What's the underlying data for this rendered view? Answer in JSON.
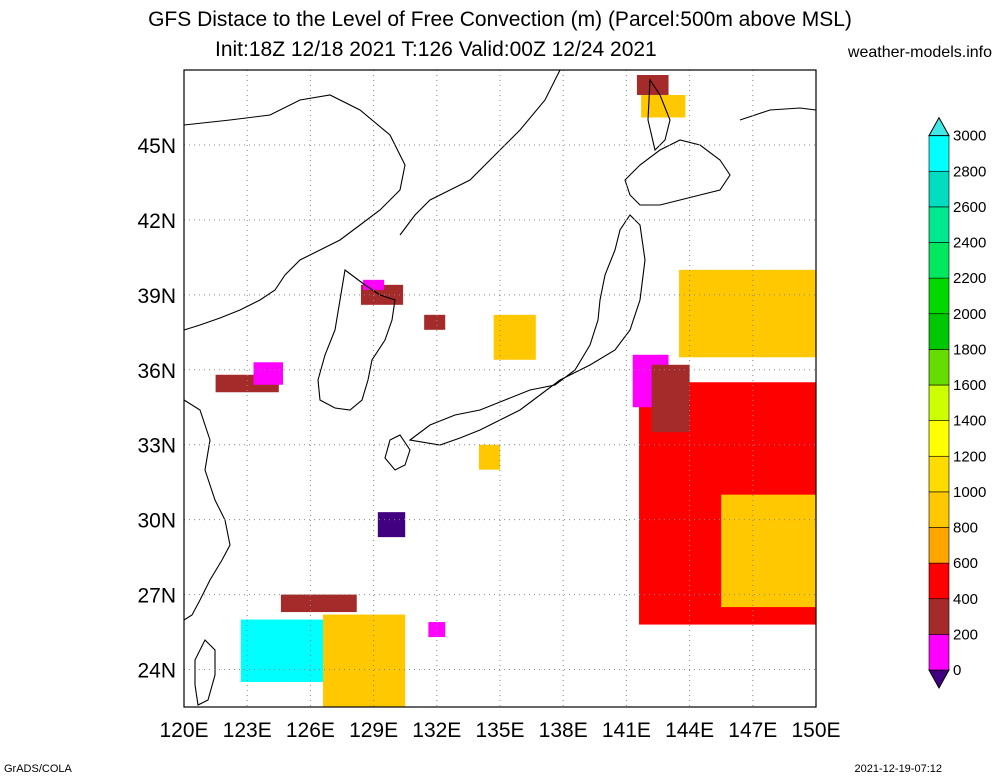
{
  "title": "GFS Distace to the Level of Free Convection (m) (Parcel:500m above MSL)",
  "subtitle": "Init:18Z 12/18 2021 T:126 Valid:00Z 12/24 2021",
  "site": "weather-models.info",
  "footer_left": "GrADS/COLA",
  "footer_right": "2021-12-19-07:12",
  "axes": {
    "lon_labels": [
      "120E",
      "123E",
      "126E",
      "129E",
      "132E",
      "135E",
      "138E",
      "141E",
      "144E",
      "147E",
      "150E"
    ],
    "lat_labels": [
      "24N",
      "27N",
      "30N",
      "33N",
      "36N",
      "39N",
      "42N",
      "45N"
    ],
    "lon_range": [
      120,
      150
    ],
    "lat_range": [
      22.5,
      48.0
    ],
    "grid": "dotted"
  },
  "legend": {
    "labels": [
      "0",
      "200",
      "400",
      "600",
      "800",
      "1000",
      "1200",
      "1400",
      "1600",
      "1800",
      "2000",
      "2200",
      "2400",
      "2600",
      "2800",
      "3000"
    ],
    "colors": [
      "#400080",
      "#ff00ff",
      "#a52a2a",
      "#ff0000",
      "#ffa500",
      "#ffc800",
      "#ffdc00",
      "#ffff00",
      "#cdff00",
      "#66dd00",
      "#00c800",
      "#00d800",
      "#00e860",
      "#00e890",
      "#00ddc0",
      "#00ffff",
      "#40e8e8"
    ]
  },
  "fields": [
    {
      "name": "korea-west-cluster",
      "color": "#a52a2a",
      "lon": [
        121.5,
        124.5
      ],
      "lat": [
        35.1,
        35.8
      ]
    },
    {
      "name": "korea-west-cluster-magenta",
      "color": "#ff00ff",
      "lon": [
        123.3,
        124.7
      ],
      "lat": [
        35.4,
        36.3
      ]
    },
    {
      "name": "bohai-cluster",
      "color": "#a52a2a",
      "lon": [
        128.4,
        130.4
      ],
      "lat": [
        38.6,
        39.4
      ]
    },
    {
      "name": "bohai-cluster-magenta",
      "color": "#ff00ff",
      "lon": [
        128.5,
        129.5
      ],
      "lat": [
        39.2,
        39.6
      ]
    },
    {
      "name": "north-korea-east",
      "color": "#a52a2a",
      "lon": [
        131.4,
        132.4
      ],
      "lat": [
        37.6,
        38.2
      ]
    },
    {
      "name": "japan-sea-yellow",
      "color": "#ffc800",
      "lon": [
        134.7,
        136.7
      ],
      "lat": [
        36.4,
        38.2
      ]
    },
    {
      "name": "kyushu-south-yellow",
      "color": "#ffc800",
      "lon": [
        134.0,
        135.0
      ],
      "lat": [
        32.0,
        33.0
      ]
    },
    {
      "name": "pacific-band-red",
      "color": "#ff0000",
      "lon": [
        141.6,
        150.0
      ],
      "lat": [
        25.8,
        35.5
      ]
    },
    {
      "name": "pacific-band-yellow",
      "color": "#ffc800",
      "lon": [
        145.5,
        150.0
      ],
      "lat": [
        26.5,
        31.0
      ]
    },
    {
      "name": "east-japan-magenta",
      "color": "#ff00ff",
      "lon": [
        141.3,
        143.0
      ],
      "lat": [
        34.5,
        36.6
      ]
    },
    {
      "name": "east-japan-brown",
      "color": "#a52a2a",
      "lon": [
        142.2,
        144.0
      ],
      "lat": [
        33.5,
        36.2
      ]
    },
    {
      "name": "northeast-yellow-band",
      "color": "#ffc800",
      "lon": [
        143.5,
        150.0
      ],
      "lat": [
        36.5,
        40.0
      ]
    },
    {
      "name": "ryukyu-magenta",
      "color": "#400080",
      "lon": [
        129.2,
        130.5
      ],
      "lat": [
        29.3,
        30.3
      ]
    },
    {
      "name": "taiwan-north-cyan",
      "color": "#00ffff",
      "lon": [
        122.7,
        128.5
      ],
      "lat": [
        23.5,
        26.0
      ]
    },
    {
      "name": "okinawa-yellow-arc",
      "color": "#ffc800",
      "lon": [
        126.6,
        130.5
      ],
      "lat": [
        22.5,
        26.2
      ]
    },
    {
      "name": "okinawa-brown",
      "color": "#a52a2a",
      "lon": [
        124.6,
        128.2
      ],
      "lat": [
        26.3,
        27.0
      ]
    },
    {
      "name": "south-magenta",
      "color": "#ff00ff",
      "lon": [
        131.6,
        132.4
      ],
      "lat": [
        25.3,
        25.9
      ]
    },
    {
      "name": "hokkaido-north",
      "color": "#a52a2a",
      "lon": [
        141.5,
        143.0
      ],
      "lat": [
        47.0,
        47.8
      ]
    },
    {
      "name": "hokkaido-north-yellow",
      "color": "#ffc800",
      "lon": [
        141.7,
        143.8
      ],
      "lat": [
        46.1,
        47.0
      ]
    }
  ]
}
